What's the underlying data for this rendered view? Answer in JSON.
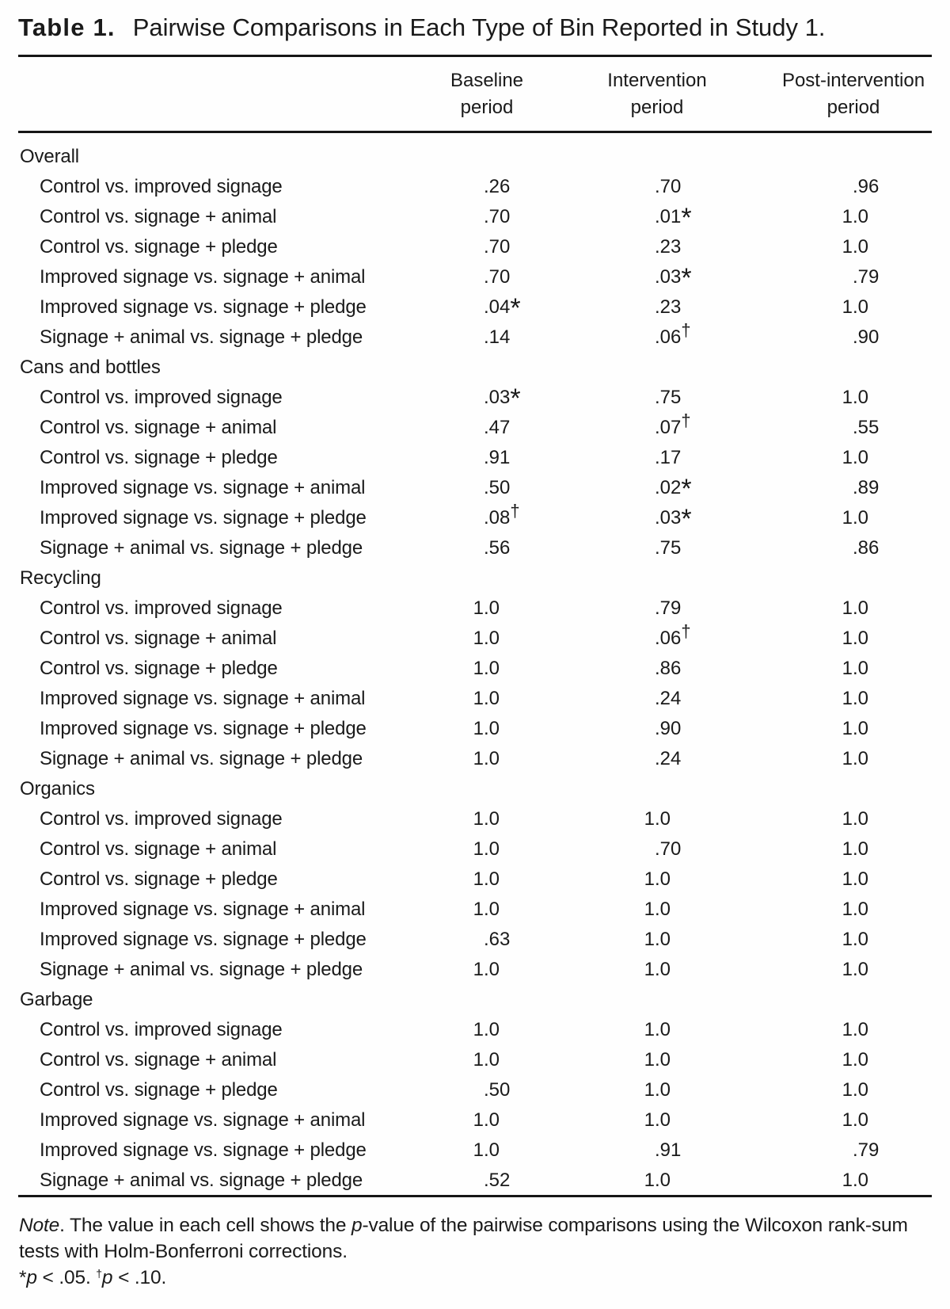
{
  "title": {
    "label": "Table 1.",
    "caption": "Pairwise Comparisons in Each Type of Bin Reported in Study 1."
  },
  "columns": [
    {
      "line1": "Baseline",
      "line2": "period"
    },
    {
      "line1": "Intervention",
      "line2": "period"
    },
    {
      "line1": "Post-intervention",
      "line2": "period"
    }
  ],
  "sections": [
    {
      "label": "Overall",
      "rows": [
        {
          "label": "Control vs. improved signage",
          "values": [
            ".26",
            ".70",
            ".96"
          ]
        },
        {
          "label": "Control vs. signage + animal",
          "values": [
            ".70",
            ".01*",
            "1.0"
          ]
        },
        {
          "label": "Control vs. signage + pledge",
          "values": [
            ".70",
            ".23",
            "1.0"
          ]
        },
        {
          "label": "Improved signage vs. signage + animal",
          "values": [
            ".70",
            ".03*",
            ".79"
          ]
        },
        {
          "label": "Improved signage vs. signage + pledge",
          "values": [
            ".04*",
            ".23",
            "1.0"
          ]
        },
        {
          "label": "Signage + animal vs. signage + pledge",
          "values": [
            ".14",
            ".06†",
            ".90"
          ]
        }
      ]
    },
    {
      "label": "Cans and bottles",
      "rows": [
        {
          "label": "Control vs. improved signage",
          "values": [
            ".03*",
            ".75",
            "1.0"
          ]
        },
        {
          "label": "Control vs. signage + animal",
          "values": [
            ".47",
            ".07†",
            ".55"
          ]
        },
        {
          "label": "Control vs. signage + pledge",
          "values": [
            ".91",
            ".17",
            "1.0"
          ]
        },
        {
          "label": "Improved signage vs. signage + animal",
          "values": [
            ".50",
            ".02*",
            ".89"
          ]
        },
        {
          "label": "Improved signage vs. signage + pledge",
          "values": [
            ".08†",
            ".03*",
            "1.0"
          ]
        },
        {
          "label": "Signage + animal vs. signage + pledge",
          "values": [
            ".56",
            ".75",
            ".86"
          ]
        }
      ]
    },
    {
      "label": "Recycling",
      "rows": [
        {
          "label": "Control vs. improved signage",
          "values": [
            "1.0",
            ".79",
            "1.0"
          ]
        },
        {
          "label": "Control vs. signage + animal",
          "values": [
            "1.0",
            ".06†",
            "1.0"
          ]
        },
        {
          "label": "Control vs. signage + pledge",
          "values": [
            "1.0",
            ".86",
            "1.0"
          ]
        },
        {
          "label": "Improved signage vs. signage + animal",
          "values": [
            "1.0",
            ".24",
            "1.0"
          ]
        },
        {
          "label": "Improved signage vs. signage + pledge",
          "values": [
            "1.0",
            ".90",
            "1.0"
          ]
        },
        {
          "label": "Signage + animal vs. signage + pledge",
          "values": [
            "1.0",
            ".24",
            "1.0"
          ]
        }
      ]
    },
    {
      "label": "Organics",
      "rows": [
        {
          "label": "Control vs. improved signage",
          "values": [
            "1.0",
            "1.0",
            "1.0"
          ]
        },
        {
          "label": "Control vs. signage + animal",
          "values": [
            "1.0",
            ".70",
            "1.0"
          ]
        },
        {
          "label": "Control vs. signage + pledge",
          "values": [
            "1.0",
            "1.0",
            "1.0"
          ]
        },
        {
          "label": "Improved signage vs. signage + animal",
          "values": [
            "1.0",
            "1.0",
            "1.0"
          ]
        },
        {
          "label": "Improved signage vs. signage + pledge",
          "values": [
            ".63",
            "1.0",
            "1.0"
          ]
        },
        {
          "label": "Signage + animal vs. signage + pledge",
          "values": [
            "1.0",
            "1.0",
            "1.0"
          ]
        }
      ]
    },
    {
      "label": "Garbage",
      "rows": [
        {
          "label": "Control vs. improved signage",
          "values": [
            "1.0",
            "1.0",
            "1.0"
          ]
        },
        {
          "label": "Control vs. signage + animal",
          "values": [
            "1.0",
            "1.0",
            "1.0"
          ]
        },
        {
          "label": "Control vs. signage + pledge",
          "values": [
            ".50",
            "1.0",
            "1.0"
          ]
        },
        {
          "label": "Improved signage vs. signage + animal",
          "values": [
            "1.0",
            "1.0",
            "1.0"
          ]
        },
        {
          "label": "Improved signage vs. signage + pledge",
          "values": [
            "1.0",
            ".91",
            ".79"
          ]
        },
        {
          "label": "Signage + animal vs. signage + pledge",
          "values": [
            ".52",
            "1.0",
            "1.0"
          ]
        }
      ]
    }
  ],
  "note": {
    "line1": [
      {
        "t": "Note",
        "i": 1
      },
      {
        "t": ". The value in each cell shows the "
      },
      {
        "t": "p",
        "i": 1
      },
      {
        "t": "-value of the pairwise comparisons using the Wilcoxon rank-sum"
      }
    ],
    "line2": [
      {
        "t": "tests with Holm-Bonferroni corrections."
      }
    ],
    "line3": [
      {
        "t": "*"
      },
      {
        "t": "p",
        "i": 1
      },
      {
        "t": " < .05. "
      },
      {
        "t": "†",
        "s": 1
      },
      {
        "t": "p",
        "i": 1
      },
      {
        "t": " < .10."
      }
    ]
  },
  "chart_data": {
    "type": "table",
    "title": "Table 1. Pairwise Comparisons in Each Type of Bin Reported in Study 1.",
    "columns": [
      "Baseline period",
      "Intervention period",
      "Post-intervention period"
    ],
    "sections": [
      "Overall",
      "Cans and bottles",
      "Recycling",
      "Organics",
      "Garbage"
    ],
    "note": "Note. The value in each cell shows the p-value of the pairwise comparisons using the Wilcoxon rank-sum tests with Holm-Bonferroni corrections. *p < .05. †p < .10."
  }
}
